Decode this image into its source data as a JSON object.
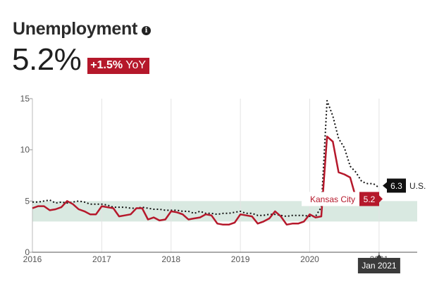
{
  "header": {
    "title": "Unemployment",
    "value": "5.2%",
    "yoy_change": "+1.5%",
    "yoy_suffix": "YoY"
  },
  "colors": {
    "accent": "#b5182b",
    "band": "#d9e9e1",
    "us_line": "#111111",
    "grid": "#e3e3e3"
  },
  "chart_data": {
    "type": "line",
    "x_unit": "year",
    "xlim": [
      2016,
      2021.55
    ],
    "ylim": [
      0,
      15
    ],
    "x_tick_labels": [
      "2016",
      "2017",
      "2018",
      "2019",
      "2020",
      "2021"
    ],
    "y_tick_labels": [
      "0",
      "5",
      "10",
      "15"
    ],
    "grid": "vertical",
    "band": [
      3,
      5
    ],
    "series": [
      {
        "name": "Kansas City",
        "style": "solid",
        "color": "#b5182b",
        "end_label": "5.2",
        "points": [
          [
            2016.0,
            4.3
          ],
          [
            2016.083,
            4.5
          ],
          [
            2016.167,
            4.5
          ],
          [
            2016.25,
            4.1
          ],
          [
            2016.333,
            4.2
          ],
          [
            2016.417,
            4.4
          ],
          [
            2016.5,
            5.0
          ],
          [
            2016.583,
            4.7
          ],
          [
            2016.667,
            4.2
          ],
          [
            2016.75,
            4.0
          ],
          [
            2016.833,
            3.7
          ],
          [
            2016.917,
            3.7
          ],
          [
            2017.0,
            4.5
          ],
          [
            2017.083,
            4.4
          ],
          [
            2017.167,
            4.3
          ],
          [
            2017.25,
            3.5
          ],
          [
            2017.333,
            3.6
          ],
          [
            2017.417,
            3.7
          ],
          [
            2017.5,
            4.3
          ],
          [
            2017.583,
            4.3
          ],
          [
            2017.667,
            3.2
          ],
          [
            2017.75,
            3.4
          ],
          [
            2017.833,
            3.1
          ],
          [
            2017.917,
            3.2
          ],
          [
            2018.0,
            4.0
          ],
          [
            2018.083,
            3.9
          ],
          [
            2018.167,
            3.7
          ],
          [
            2018.25,
            3.2
          ],
          [
            2018.333,
            3.3
          ],
          [
            2018.417,
            3.4
          ],
          [
            2018.5,
            3.7
          ],
          [
            2018.583,
            3.6
          ],
          [
            2018.667,
            2.8
          ],
          [
            2018.75,
            2.7
          ],
          [
            2018.833,
            2.7
          ],
          [
            2018.917,
            2.9
          ],
          [
            2019.0,
            3.7
          ],
          [
            2019.083,
            3.6
          ],
          [
            2019.167,
            3.5
          ],
          [
            2019.25,
            2.8
          ],
          [
            2019.333,
            3.0
          ],
          [
            2019.417,
            3.3
          ],
          [
            2019.5,
            4.0
          ],
          [
            2019.583,
            3.5
          ],
          [
            2019.667,
            2.7
          ],
          [
            2019.75,
            2.8
          ],
          [
            2019.833,
            2.8
          ],
          [
            2019.917,
            3.0
          ],
          [
            2020.0,
            3.7
          ],
          [
            2020.083,
            3.4
          ],
          [
            2020.167,
            3.5
          ],
          [
            2020.25,
            11.3
          ],
          [
            2020.333,
            10.8
          ],
          [
            2020.417,
            7.8
          ],
          [
            2020.5,
            7.6
          ],
          [
            2020.583,
            7.3
          ],
          [
            2020.667,
            5.3
          ],
          [
            2020.75,
            5.5
          ],
          [
            2020.833,
            5.3
          ],
          [
            2020.917,
            5.2
          ],
          [
            2021.0,
            5.2
          ]
        ]
      },
      {
        "name": "U.S.",
        "style": "dotted",
        "color": "#111111",
        "end_label": "6.3",
        "points": [
          [
            2016.0,
            4.9
          ],
          [
            2016.083,
            4.9
          ],
          [
            2016.167,
            5.0
          ],
          [
            2016.25,
            5.1
          ],
          [
            2016.333,
            4.8
          ],
          [
            2016.417,
            4.9
          ],
          [
            2016.5,
            4.8
          ],
          [
            2016.583,
            4.9
          ],
          [
            2016.667,
            5.0
          ],
          [
            2016.75,
            4.9
          ],
          [
            2016.833,
            4.7
          ],
          [
            2016.917,
            4.7
          ],
          [
            2017.0,
            4.7
          ],
          [
            2017.083,
            4.6
          ],
          [
            2017.167,
            4.4
          ],
          [
            2017.25,
            4.4
          ],
          [
            2017.333,
            4.4
          ],
          [
            2017.417,
            4.3
          ],
          [
            2017.5,
            4.3
          ],
          [
            2017.583,
            4.4
          ],
          [
            2017.667,
            4.3
          ],
          [
            2017.75,
            4.2
          ],
          [
            2017.833,
            4.2
          ],
          [
            2017.917,
            4.1
          ],
          [
            2018.0,
            4.1
          ],
          [
            2018.083,
            4.1
          ],
          [
            2018.167,
            4.0
          ],
          [
            2018.25,
            4.0
          ],
          [
            2018.333,
            3.8
          ],
          [
            2018.417,
            4.0
          ],
          [
            2018.5,
            3.8
          ],
          [
            2018.583,
            3.8
          ],
          [
            2018.667,
            3.7
          ],
          [
            2018.75,
            3.8
          ],
          [
            2018.833,
            3.8
          ],
          [
            2018.917,
            3.9
          ],
          [
            2019.0,
            4.0
          ],
          [
            2019.083,
            3.8
          ],
          [
            2019.167,
            3.8
          ],
          [
            2019.25,
            3.6
          ],
          [
            2019.333,
            3.6
          ],
          [
            2019.417,
            3.7
          ],
          [
            2019.5,
            3.7
          ],
          [
            2019.583,
            3.6
          ],
          [
            2019.667,
            3.5
          ],
          [
            2019.75,
            3.6
          ],
          [
            2019.833,
            3.6
          ],
          [
            2019.917,
            3.6
          ],
          [
            2020.0,
            3.5
          ],
          [
            2020.083,
            3.5
          ],
          [
            2020.167,
            4.4
          ],
          [
            2020.25,
            14.8
          ],
          [
            2020.333,
            13.3
          ],
          [
            2020.417,
            11.1
          ],
          [
            2020.5,
            10.2
          ],
          [
            2020.583,
            8.4
          ],
          [
            2020.667,
            7.8
          ],
          [
            2020.75,
            6.9
          ],
          [
            2020.833,
            6.7
          ],
          [
            2020.917,
            6.7
          ],
          [
            2021.0,
            6.3
          ]
        ]
      }
    ],
    "hover_label": "Jan 2021"
  }
}
